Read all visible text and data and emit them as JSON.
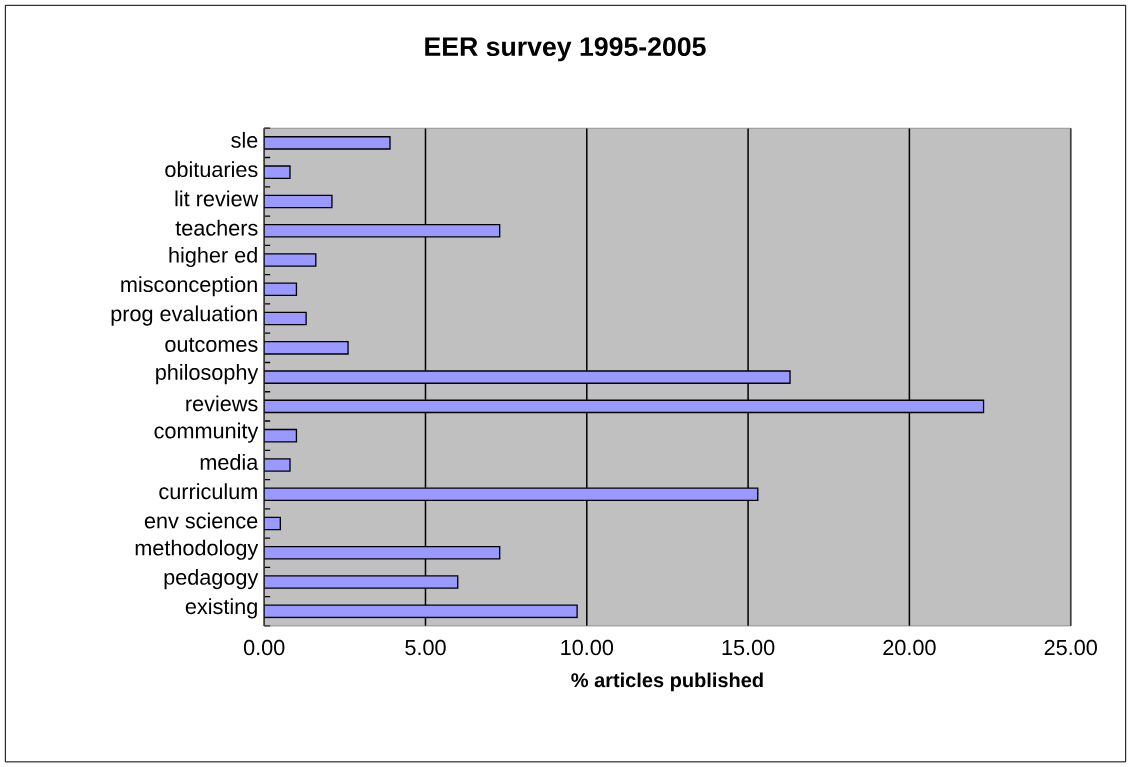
{
  "chart_data": {
    "type": "bar",
    "orientation": "horizontal",
    "title": "EER survey 1995-2005",
    "xlabel": "% articles published",
    "categories": [
      "sle",
      "obituaries",
      "lit review",
      "teachers",
      "higher ed",
      "misconception",
      "prog evaluation",
      "outcomes",
      "philosophy",
      "reviews",
      "community",
      "media",
      "curriculum",
      "env science",
      "methodology",
      "pedagogy",
      "existing"
    ],
    "values": [
      3.9,
      0.8,
      2.1,
      7.3,
      1.6,
      1.0,
      1.3,
      2.6,
      16.3,
      22.3,
      1.0,
      0.8,
      15.3,
      0.5,
      7.3,
      6.0,
      9.7
    ],
    "color": "#9999ff",
    "grid": "x",
    "xlim": [
      0,
      25
    ],
    "xticks": [
      {
        "value": 0,
        "label": "0.00"
      },
      {
        "value": 5,
        "label": "5.00"
      },
      {
        "value": 10,
        "label": "10.00"
      },
      {
        "value": 15,
        "label": "15.00"
      },
      {
        "value": 20,
        "label": "20.00"
      },
      {
        "value": 25,
        "label": "25.00"
      }
    ]
  }
}
